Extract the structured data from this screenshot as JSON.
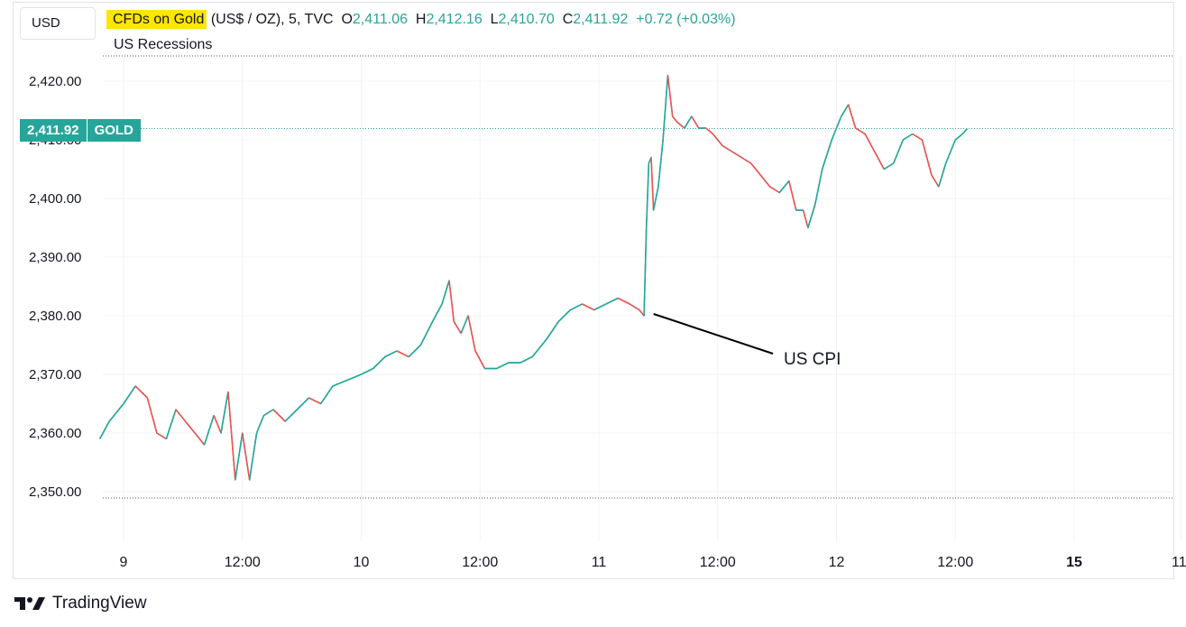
{
  "header": {
    "unit": "USD",
    "symbol": "CFDs on Gold",
    "symbol_rest": " (US$ / OZ), 5, TVC",
    "o_label": "O",
    "o_value": "2,411.06",
    "h_label": "H",
    "h_value": "2,412.16",
    "l_label": "L",
    "l_value": "2,410.70",
    "c_label": "C",
    "c_value": "2,411.92",
    "change": "+0.72 (+0.03%)",
    "indicator": "US Recessions"
  },
  "price_tag": {
    "value": "2,411.92",
    "ticker": "GOLD"
  },
  "footer": {
    "brand": "TradingView"
  },
  "colors": {
    "up": "#26a69a",
    "down": "#ef5350",
    "highlight": "#ffe600",
    "grid": "#f0f3fa"
  },
  "chart_data": {
    "type": "line",
    "title": "",
    "ylim": [
      2343,
      2426
    ],
    "y_ticks": [
      2350,
      2360,
      2370,
      2380,
      2390,
      2400,
      2410,
      2420
    ],
    "y_tick_labels": [
      "2,350.00",
      "2,360.00",
      "2,370.00",
      "2,380.00",
      "2,390.00",
      "2,400.00",
      "2,410.00",
      "2,420.00"
    ],
    "x_ticks": [
      {
        "label": "9",
        "t": 0.5
      },
      {
        "label": "12:00",
        "t": 1.0
      },
      {
        "label": "10",
        "t": 1.5
      },
      {
        "label": "12:00",
        "t": 2.0
      },
      {
        "label": "11",
        "t": 2.5
      },
      {
        "label": "12:00",
        "t": 3.0
      },
      {
        "label": "12",
        "t": 3.5
      },
      {
        "label": "12:00",
        "t": 4.0
      },
      {
        "label": "15",
        "t": 4.5,
        "bold": true
      },
      {
        "label": "11:",
        "t": 4.95
      }
    ],
    "xlim": [
      0.4,
      4.99
    ],
    "series": [
      {
        "values": [
          [
            0.4,
            2359
          ],
          [
            0.44,
            2362
          ],
          [
            0.5,
            2365
          ],
          [
            0.55,
            2368
          ],
          [
            0.6,
            2366
          ],
          [
            0.64,
            2360
          ],
          [
            0.68,
            2359
          ],
          [
            0.72,
            2364
          ],
          [
            0.76,
            2362
          ],
          [
            0.8,
            2360
          ],
          [
            0.84,
            2358
          ],
          [
            0.88,
            2363
          ],
          [
            0.91,
            2360
          ],
          [
            0.94,
            2367
          ],
          [
            0.97,
            2352
          ],
          [
            1.0,
            2360
          ],
          [
            1.03,
            2352
          ],
          [
            1.06,
            2360
          ],
          [
            1.09,
            2363
          ],
          [
            1.13,
            2364
          ],
          [
            1.18,
            2362
          ],
          [
            1.23,
            2364
          ],
          [
            1.28,
            2366
          ],
          [
            1.33,
            2365
          ],
          [
            1.38,
            2368
          ],
          [
            1.44,
            2369
          ],
          [
            1.5,
            2370
          ],
          [
            1.55,
            2371
          ],
          [
            1.6,
            2373
          ],
          [
            1.65,
            2374
          ],
          [
            1.7,
            2373
          ],
          [
            1.75,
            2375
          ],
          [
            1.8,
            2379
          ],
          [
            1.84,
            2382
          ],
          [
            1.87,
            2386
          ],
          [
            1.89,
            2379
          ],
          [
            1.92,
            2377
          ],
          [
            1.95,
            2380
          ],
          [
            1.98,
            2374
          ],
          [
            2.02,
            2371
          ],
          [
            2.07,
            2371
          ],
          [
            2.12,
            2372
          ],
          [
            2.17,
            2372
          ],
          [
            2.22,
            2373
          ],
          [
            2.28,
            2376
          ],
          [
            2.33,
            2379
          ],
          [
            2.38,
            2381
          ],
          [
            2.43,
            2382
          ],
          [
            2.48,
            2381
          ],
          [
            2.53,
            2382
          ],
          [
            2.58,
            2383
          ],
          [
            2.63,
            2382
          ],
          [
            2.67,
            2381
          ],
          [
            2.69,
            2380
          ],
          [
            2.7,
            2395
          ],
          [
            2.71,
            2406
          ],
          [
            2.72,
            2407
          ],
          [
            2.73,
            2398
          ],
          [
            2.74,
            2400
          ],
          [
            2.75,
            2402
          ],
          [
            2.77,
            2410
          ],
          [
            2.79,
            2421
          ],
          [
            2.81,
            2414
          ],
          [
            2.83,
            2413
          ],
          [
            2.86,
            2412
          ],
          [
            2.89,
            2414
          ],
          [
            2.92,
            2412
          ],
          [
            2.95,
            2412
          ],
          [
            2.98,
            2411
          ],
          [
            3.02,
            2409
          ],
          [
            3.06,
            2408
          ],
          [
            3.1,
            2407
          ],
          [
            3.14,
            2406
          ],
          [
            3.18,
            2404
          ],
          [
            3.22,
            2402
          ],
          [
            3.26,
            2401
          ],
          [
            3.3,
            2403
          ],
          [
            3.33,
            2398
          ],
          [
            3.36,
            2398
          ],
          [
            3.38,
            2395
          ],
          [
            3.41,
            2399
          ],
          [
            3.44,
            2405
          ],
          [
            3.48,
            2410
          ],
          [
            3.52,
            2414
          ],
          [
            3.55,
            2416
          ],
          [
            3.58,
            2412
          ],
          [
            3.62,
            2411
          ],
          [
            3.66,
            2408
          ],
          [
            3.7,
            2405
          ],
          [
            3.74,
            2406
          ],
          [
            3.78,
            2410
          ],
          [
            3.82,
            2411
          ],
          [
            3.86,
            2410
          ],
          [
            3.9,
            2404
          ],
          [
            3.93,
            2402
          ],
          [
            3.96,
            2406
          ],
          [
            4.0,
            2410
          ],
          [
            4.03,
            2411
          ],
          [
            4.05,
            2411.9
          ]
        ]
      }
    ],
    "annotations": [
      {
        "text": "US CPI",
        "x": 2.7,
        "y": 2380
      }
    ],
    "grid": true,
    "current_price": 2411.92
  }
}
